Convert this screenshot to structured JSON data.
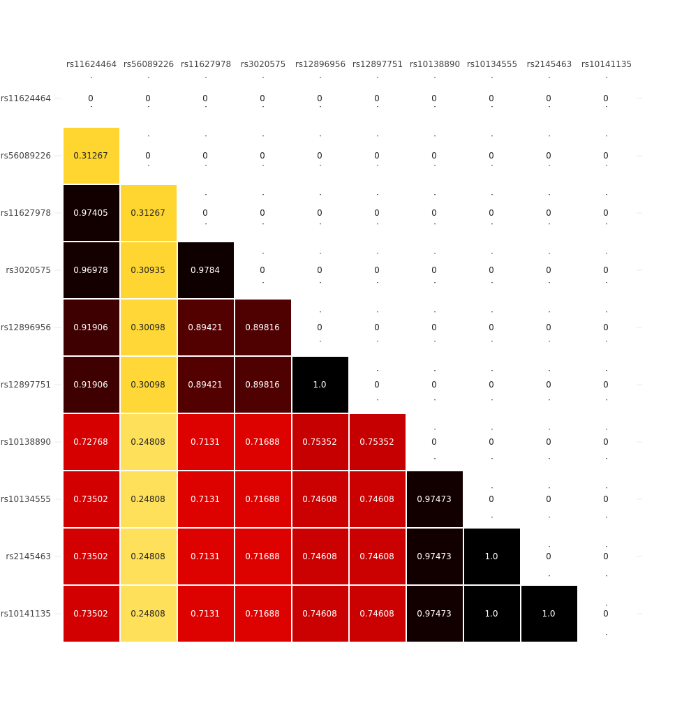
{
  "chart_data": {
    "type": "heatmap",
    "title": "",
    "xlabel": "",
    "ylabel": "",
    "x_categories": [
      "rs11624464",
      "rs56089226",
      "rs11627978",
      "rs3020575",
      "rs12896956",
      "rs12897751",
      "rs10138890",
      "rs10134555",
      "rs2145463",
      "rs10141135"
    ],
    "y_categories": [
      "rs11624464",
      "rs56089226",
      "rs11627978",
      "rs3020575",
      "rs12896956",
      "rs12897751",
      "rs10138890",
      "rs10134555",
      "rs2145463",
      "rs10141135"
    ],
    "values": [
      [
        "0",
        "0",
        "0",
        "0",
        "0",
        "0",
        "0",
        "0",
        "0",
        "0"
      ],
      [
        "0.31267",
        "0",
        "0",
        "0",
        "0",
        "0",
        "0",
        "0",
        "0",
        "0"
      ],
      [
        "0.97405",
        "0.31267",
        "0",
        "0",
        "0",
        "0",
        "0",
        "0",
        "0",
        "0"
      ],
      [
        "0.96978",
        "0.30935",
        "0.9784",
        "0",
        "0",
        "0",
        "0",
        "0",
        "0",
        "0"
      ],
      [
        "0.91906",
        "0.30098",
        "0.89421",
        "0.89816",
        "0",
        "0",
        "0",
        "0",
        "0",
        "0"
      ],
      [
        "0.91906",
        "0.30098",
        "0.89421",
        "0.89816",
        "1.0",
        "0",
        "0",
        "0",
        "0",
        "0"
      ],
      [
        "0.72768",
        "0.24808",
        "0.7131",
        "0.71688",
        "0.75352",
        "0.75352",
        "0",
        "0",
        "0",
        "0"
      ],
      [
        "0.73502",
        "0.24808",
        "0.7131",
        "0.71688",
        "0.74608",
        "0.74608",
        "0.97473",
        "0",
        "0",
        "0"
      ],
      [
        "0.73502",
        "0.24808",
        "0.7131",
        "0.71688",
        "0.74608",
        "0.74608",
        "0.97473",
        "1.0",
        "0",
        "0"
      ],
      [
        "0.73502",
        "0.24808",
        "0.7131",
        "0.71688",
        "0.74608",
        "0.74608",
        "0.97473",
        "1.0",
        "1.0",
        "0"
      ]
    ],
    "colorscale": "hot-reversed",
    "colorscale_stops": [
      {
        "value": 0.0,
        "color": "#ffffff"
      },
      {
        "value": 0.25,
        "color": "#ffe05a"
      },
      {
        "value": 0.32,
        "color": "#ffd42a"
      },
      {
        "value": 0.55,
        "color": "#ff2a00"
      },
      {
        "value": 0.72,
        "color": "#dc0000"
      },
      {
        "value": 0.75,
        "color": "#c90000"
      },
      {
        "value": 0.9,
        "color": "#4d0000"
      },
      {
        "value": 0.97,
        "color": "#150000"
      },
      {
        "value": 1.0,
        "color": "#000000"
      }
    ],
    "zero_cells_blank": true,
    "x_axis_position": "top",
    "grid": true
  }
}
